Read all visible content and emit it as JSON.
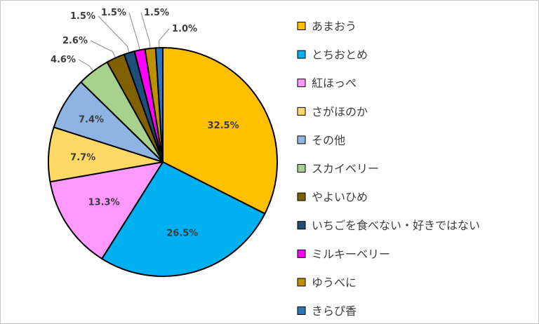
{
  "chart_data": {
    "type": "pie",
    "title": "",
    "legend_position": "right",
    "slices": [
      {
        "label": "あまおう",
        "value": 32.5,
        "display": "32.5%",
        "color": "#FFC000"
      },
      {
        "label": "とちおとめ",
        "value": 26.5,
        "display": "26.5%",
        "color": "#00B0F0"
      },
      {
        "label": "紅ほっぺ",
        "value": 13.3,
        "display": "13.3%",
        "color": "#FF99FF"
      },
      {
        "label": "さがほのか",
        "value": 7.7,
        "display": "7.7%",
        "color": "#FFD966"
      },
      {
        "label": "その他",
        "value": 7.4,
        "display": "7.4%",
        "color": "#8EB4E3"
      },
      {
        "label": "スカイベリー",
        "value": 4.6,
        "display": "4.6%",
        "color": "#A9D18E"
      },
      {
        "label": "やよいひめ",
        "value": 2.6,
        "display": "2.6%",
        "color": "#806000"
      },
      {
        "label": "いちごを食べない・好きではない",
        "value": 1.5,
        "display": "1.5%",
        "color": "#1F4E79"
      },
      {
        "label": "ミルキーベリー",
        "value": 1.5,
        "display": "1.5%",
        "color": "#FF00FF"
      },
      {
        "label": "ゆうべに",
        "value": 1.5,
        "display": "1.5%",
        "color": "#BF9000"
      },
      {
        "label": "きらぴ香",
        "value": 1.0,
        "display": "1.0%",
        "color": "#2E75B6"
      }
    ]
  }
}
